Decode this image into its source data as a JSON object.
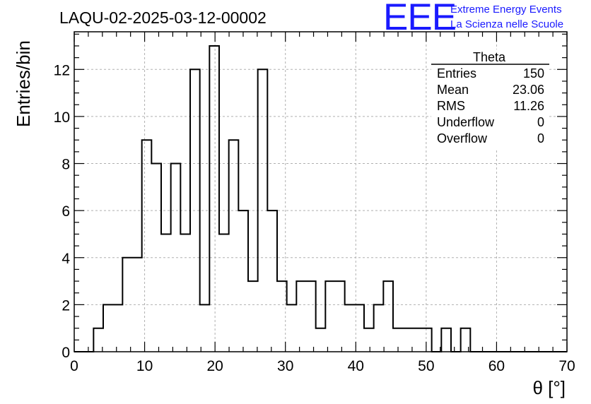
{
  "chart_data": {
    "type": "bar",
    "title": "LAQU-02-2025-03-12-00002",
    "xlabel": "θ [°]",
    "ylabel": "Entries/bin",
    "xlim": [
      0,
      70
    ],
    "ylim": [
      0,
      13.6
    ],
    "x_ticks": [
      "0",
      "10",
      "20",
      "30",
      "40",
      "50",
      "60",
      "70"
    ],
    "y_ticks": [
      "0",
      "2",
      "4",
      "6",
      "8",
      "10",
      "12"
    ],
    "grid": true,
    "histogram": {
      "bin_edges": [
        0,
        1.3725,
        2.745,
        4.1175,
        5.49,
        6.8625,
        8.235,
        9.6075,
        10.98,
        12.3525,
        13.725,
        15.0975,
        16.47,
        17.8425,
        19.215,
        20.5875,
        21.96,
        23.3325,
        24.705,
        26.0775,
        27.45,
        28.8225,
        30.195,
        31.5675,
        32.94,
        34.3125,
        35.685,
        37.0575,
        38.43,
        39.8025,
        41.175,
        42.5475,
        43.92,
        45.2925,
        46.665,
        48.0375,
        49.41,
        50.7825,
        52.155,
        53.5275,
        54.9,
        56.2725,
        57.645,
        59.0175,
        60.39,
        61.7625,
        63.135,
        64.5075,
        65.88,
        67.2525,
        68.625,
        70
      ],
      "counts": [
        0,
        0,
        1,
        2,
        2,
        4,
        4,
        9,
        8,
        5,
        8,
        5,
        12,
        2,
        13,
        5,
        9,
        6,
        3,
        12,
        6,
        3,
        2,
        3,
        3,
        1,
        3,
        3,
        2,
        2,
        1,
        2,
        3,
        1,
        1,
        1,
        1,
        0,
        1,
        0,
        1,
        0,
        0,
        0,
        0,
        0,
        0,
        0,
        0,
        0,
        0
      ]
    },
    "stats_box": {
      "name": "Theta",
      "rows": [
        {
          "label": "Entries",
          "value": "150"
        },
        {
          "label": "Mean",
          "value": "23.06"
        },
        {
          "label": "RMS",
          "value": "11.26"
        },
        {
          "label": "Underflow",
          "value": "0"
        },
        {
          "label": "Overflow",
          "value": "0"
        }
      ]
    }
  },
  "logo": {
    "mark": "EEE",
    "line1": "Extreme Energy Events",
    "line2": "La Scienza nelle Scuole"
  },
  "colors": {
    "line": "#000000",
    "grid": "#b0b0b0",
    "logo": "#1a1aff"
  }
}
